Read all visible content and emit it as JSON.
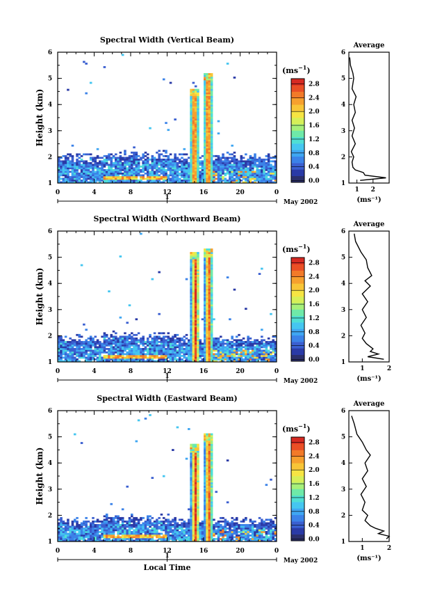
{
  "x_ticks": [
    "0",
    "4",
    "8",
    "12",
    "16",
    "20",
    "0"
  ],
  "day_tick": "1",
  "month_label": "May 2002",
  "y_ticks": [
    "1",
    "2",
    "3",
    "4",
    "5",
    "6"
  ],
  "cb_unit": "(ms",
  "cb_sup": "−1",
  "cb_close": ")",
  "avg_title": "Average",
  "avg_ticks": [
    "1",
    "2"
  ],
  "bottom_xlabel": "Local Time",
  "ylabel": "Height (km)",
  "colors": [
    "#2b2f6b",
    "#2a3aa6",
    "#3a5fd0",
    "#3b82e8",
    "#3fa6f2",
    "#45c6f0",
    "#4fdfd4",
    "#6fe9a8",
    "#a6f07a",
    "#d6ef58",
    "#f6e443",
    "#f8c537",
    "#f6a02e",
    "#f27a29",
    "#ea4f25",
    "#d62a22"
  ],
  "chart_data": [
    {
      "type": "heatmap",
      "title": "Spectral Width (Vertical Beam)",
      "xlabel": "",
      "ylabel": "Height (km)",
      "xlim": [
        0,
        24
      ],
      "ylim": [
        1,
        6
      ],
      "colorbar": {
        "label": "(ms⁻¹)",
        "ticks": [
          "0.0",
          "0.4",
          "0.8",
          "1.2",
          "1.6",
          "2.0",
          "2.4",
          "2.8"
        ],
        "range": [
          0,
          3.0
        ]
      },
      "features": [
        {
          "x0": 0,
          "x1": 24,
          "h_top": 2.0,
          "base": 1.0,
          "note": "boundary layer band"
        },
        {
          "x0": 14.5,
          "x1": 15.5,
          "h_top": 4.6
        },
        {
          "x0": 16.0,
          "x1": 17.0,
          "h_top": 5.2
        }
      ],
      "average": {
        "x": [
          0.55,
          0.6,
          0.75,
          0.8,
          0.7,
          0.95,
          0.8,
          0.9,
          0.7,
          0.85,
          0.7,
          0.9,
          0.65,
          0.8,
          0.7,
          0.75,
          0.9,
          1.4,
          1.5,
          2.8,
          1.2
        ],
        "y": [
          5.8,
          5.5,
          5.2,
          5.0,
          4.6,
          4.3,
          4.0,
          3.7,
          3.4,
          3.1,
          2.8,
          2.5,
          2.2,
          2.0,
          1.8,
          1.6,
          1.5,
          1.4,
          1.3,
          1.2,
          1.1
        ],
        "xlim": [
          0.5,
          3
        ],
        "xlabel": "(ms⁻¹)"
      }
    },
    {
      "type": "heatmap",
      "title": "Spectral Width (Northward Beam)",
      "xlabel": "",
      "ylabel": "Height (km)",
      "xlim": [
        0,
        24
      ],
      "ylim": [
        1,
        6
      ],
      "colorbar": {
        "label": "(ms⁻¹)",
        "ticks": [
          "0.0",
          "0.4",
          "0.8",
          "1.2",
          "1.6",
          "2.0",
          "2.4",
          "2.8"
        ],
        "range": [
          0,
          3.0
        ]
      },
      "features": [
        {
          "x0": 0,
          "x1": 24,
          "h_top": 1.9,
          "base": 1.0,
          "note": "boundary layer band"
        },
        {
          "x0": 14.6,
          "x1": 15.6,
          "h_top": 5.2
        },
        {
          "x0": 16.1,
          "x1": 17.0,
          "h_top": 5.3
        }
      ],
      "average": {
        "x": [
          0.7,
          0.75,
          0.95,
          1.15,
          1.2,
          1.35,
          1.1,
          1.3,
          1.0,
          1.2,
          1.0,
          1.15,
          0.95,
          1.1,
          1.0,
          1.15,
          1.4,
          1.3,
          1.6,
          1.2,
          1.8
        ],
        "y": [
          5.9,
          5.6,
          5.2,
          4.9,
          4.6,
          4.3,
          4.1,
          3.9,
          3.6,
          3.3,
          3.0,
          2.7,
          2.4,
          2.1,
          1.9,
          1.7,
          1.5,
          1.4,
          1.3,
          1.2,
          1.1
        ],
        "xlim": [
          0.5,
          2
        ],
        "xlabel": "(ms⁻¹)"
      }
    },
    {
      "type": "heatmap",
      "title": "Spectral Width (Eastward Beam)",
      "xlabel": "Local Time",
      "ylabel": "Height (km)",
      "xlim": [
        0,
        24
      ],
      "ylim": [
        1,
        6
      ],
      "colorbar": {
        "label": "(ms⁻¹)",
        "ticks": [
          "0.0",
          "0.4",
          "0.8",
          "1.2",
          "1.6",
          "2.0",
          "2.4",
          "2.8"
        ],
        "range": [
          0,
          3.0
        ]
      },
      "features": [
        {
          "x0": 0,
          "x1": 24,
          "h_top": 1.8,
          "base": 1.0,
          "note": "boundary layer band"
        },
        {
          "x0": 14.6,
          "x1": 15.6,
          "h_top": 4.7
        },
        {
          "x0": 16.1,
          "x1": 17.0,
          "h_top": 5.1
        }
      ],
      "average": {
        "x": [
          0.6,
          0.7,
          0.8,
          1.0,
          1.15,
          1.3,
          1.1,
          1.2,
          1.0,
          1.15,
          0.95,
          1.1,
          1.0,
          1.2,
          1.1,
          1.3,
          1.5,
          1.8,
          1.6,
          2.0,
          1.9
        ],
        "y": [
          5.8,
          5.5,
          5.1,
          4.8,
          4.5,
          4.3,
          4.0,
          3.7,
          3.4,
          3.1,
          2.8,
          2.5,
          2.2,
          2.0,
          1.8,
          1.6,
          1.5,
          1.4,
          1.3,
          1.2,
          1.1
        ],
        "xlim": [
          0.5,
          2
        ],
        "xlabel": "(ms⁻¹)"
      }
    }
  ]
}
